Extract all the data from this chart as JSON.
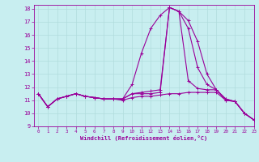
{
  "title": "",
  "xlabel": "Windchill (Refroidissement éolien,°C)",
  "ylabel": "",
  "xlim": [
    -0.5,
    23
  ],
  "ylim": [
    9,
    18.3
  ],
  "yticks": [
    9,
    10,
    11,
    12,
    13,
    14,
    15,
    16,
    17,
    18
  ],
  "xticks": [
    0,
    1,
    2,
    3,
    4,
    5,
    6,
    7,
    8,
    9,
    10,
    11,
    12,
    13,
    14,
    15,
    16,
    17,
    18,
    19,
    20,
    21,
    22,
    23
  ],
  "bg_color": "#c8eef0",
  "grid_color": "#b0dcdc",
  "line_color": "#990099",
  "lines": [
    [
      11.5,
      10.5,
      11.1,
      11.3,
      11.5,
      11.3,
      11.2,
      11.1,
      11.1,
      11.1,
      12.2,
      14.6,
      16.5,
      17.5,
      18.1,
      17.8,
      17.1,
      15.5,
      13.0,
      11.8,
      11.0,
      10.9,
      10.0,
      9.5
    ],
    [
      11.5,
      10.5,
      11.1,
      11.3,
      11.5,
      11.3,
      11.2,
      11.1,
      11.1,
      11.1,
      11.5,
      11.6,
      11.7,
      11.8,
      18.1,
      17.8,
      16.5,
      13.5,
      12.2,
      11.8,
      11.1,
      10.9,
      10.0,
      9.5
    ],
    [
      11.5,
      10.5,
      11.1,
      11.3,
      11.5,
      11.3,
      11.2,
      11.1,
      11.1,
      11.1,
      11.5,
      11.5,
      11.5,
      11.6,
      18.1,
      17.8,
      12.5,
      11.9,
      11.8,
      11.8,
      11.1,
      10.9,
      10.0,
      9.5
    ],
    [
      11.5,
      10.5,
      11.1,
      11.3,
      11.5,
      11.3,
      11.2,
      11.1,
      11.1,
      11.0,
      11.2,
      11.3,
      11.3,
      11.4,
      11.5,
      11.5,
      11.6,
      11.6,
      11.6,
      11.6,
      11.0,
      10.9,
      10.0,
      9.5
    ]
  ]
}
